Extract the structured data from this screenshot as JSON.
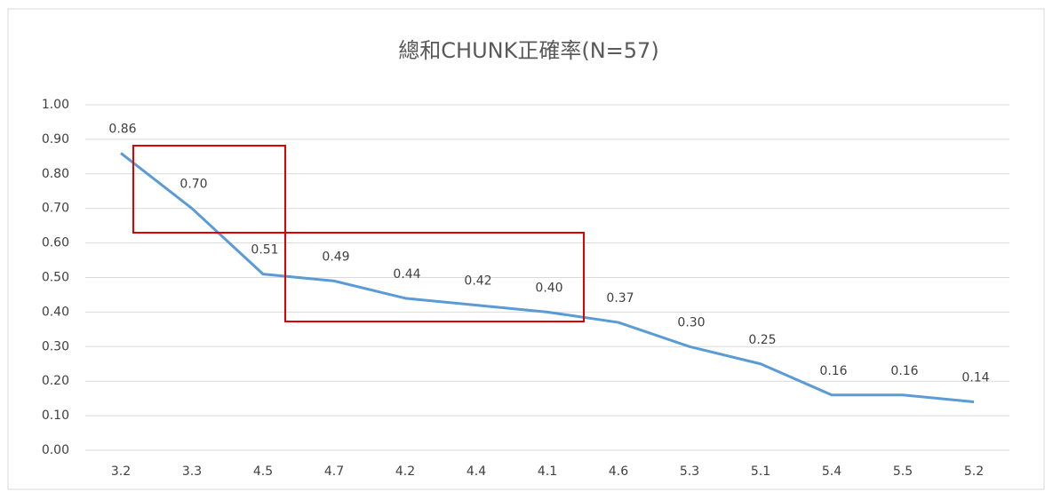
{
  "chart_data": {
    "type": "line",
    "title": "總和CHUNK正確率(N=57)",
    "categories": [
      "3.2",
      "3.3",
      "4.5",
      "4.7",
      "4.2",
      "4.4",
      "4.1",
      "4.6",
      "5.3",
      "5.1",
      "5.4",
      "5.5",
      "5.2"
    ],
    "series": [
      {
        "name": "總和CHUNK正確率",
        "color": "#5b9bd5",
        "values": [
          0.86,
          0.7,
          0.51,
          0.49,
          0.44,
          0.42,
          0.4,
          0.37,
          0.3,
          0.25,
          0.16,
          0.16,
          0.14
        ],
        "value_labels": [
          "0.86",
          "0.70",
          "0.51",
          "0.49",
          "0.44",
          "0.42",
          "0.40",
          "0.37",
          "0.30",
          "0.25",
          "0.16",
          "0.16",
          "0.14"
        ]
      }
    ],
    "ylim": [
      0,
      1
    ],
    "yticks": [
      {
        "value": 0,
        "label": "0.00"
      },
      {
        "value": 0.1,
        "label": "0.10"
      },
      {
        "value": 0.2,
        "label": "0.20"
      },
      {
        "value": 0.3,
        "label": "0.30"
      },
      {
        "value": 0.4,
        "label": "0.40"
      },
      {
        "value": 0.5,
        "label": "0.50"
      },
      {
        "value": 0.6,
        "label": "0.60"
      },
      {
        "value": 0.7,
        "label": "0.70"
      },
      {
        "value": 0.8,
        "label": "0.80"
      },
      {
        "value": 0.9,
        "label": "0.90"
      },
      {
        "value": 1,
        "label": "1.00"
      }
    ],
    "grid": true
  }
}
